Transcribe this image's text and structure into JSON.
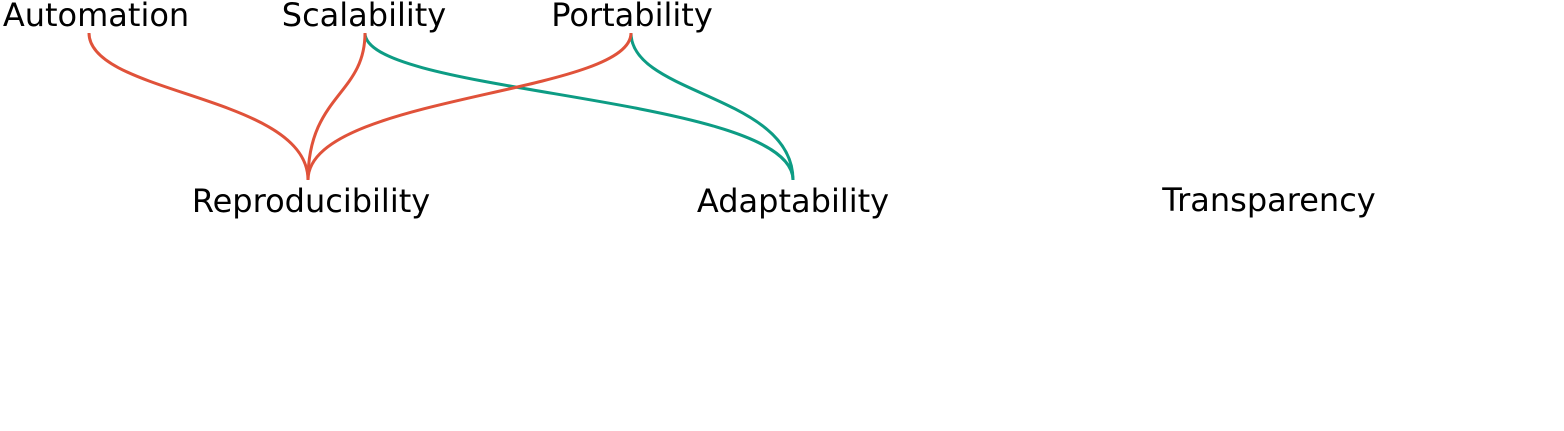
{
  "nodes": {
    "automation": "Automation",
    "scalability": "Scalability",
    "portability": "Portability",
    "reproducibility": "Reproducibility",
    "adaptability": "Adaptability",
    "transparency": "Transparency"
  },
  "edges": [
    {
      "from": "automation",
      "to": "reproducibility",
      "color": "#e0523a"
    },
    {
      "from": "scalability",
      "to": "reproducibility",
      "color": "#e0523a"
    },
    {
      "from": "portability",
      "to": "reproducibility",
      "color": "#e0523a"
    },
    {
      "from": "scalability",
      "to": "adaptability",
      "color": "#0d9c84"
    },
    {
      "from": "portability",
      "to": "adaptability",
      "color": "#0d9c84"
    }
  ],
  "colors": {
    "red": "#e0523a",
    "teal": "#0d9c84",
    "text": "#000000"
  }
}
